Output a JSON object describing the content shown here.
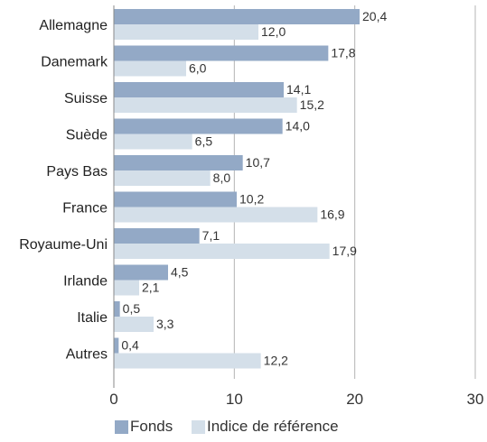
{
  "chart_data": {
    "type": "bar",
    "orientation": "horizontal",
    "categories": [
      "Allemagne",
      "Danemark",
      "Suisse",
      "Suède",
      "Pays Bas",
      "France",
      "Royaume-Uni",
      "Irlande",
      "Italie",
      "Autres"
    ],
    "series": [
      {
        "name": "Fonds",
        "values": [
          20.4,
          17.8,
          14.1,
          14.0,
          10.7,
          10.2,
          7.1,
          4.5,
          0.5,
          0.4
        ],
        "labels": [
          "20,4",
          "17,8",
          "14,1",
          "14,0",
          "10,7",
          "10,2",
          "7,1",
          "4,5",
          "0,5",
          "0,4"
        ],
        "color": "#93a9c6"
      },
      {
        "name": "Indice de référence",
        "values": [
          12.0,
          6.0,
          15.2,
          6.5,
          8.0,
          16.9,
          17.9,
          2.1,
          3.3,
          12.2
        ],
        "labels": [
          "12,0",
          "6,0",
          "15,2",
          "6,5",
          "8,0",
          "16,9",
          "17,9",
          "2,1",
          "3,3",
          "12,2"
        ],
        "color": "#d4dfe9"
      }
    ],
    "xlim": [
      0,
      30
    ],
    "xticks": [
      0,
      10,
      20,
      30
    ],
    "xtick_labels": [
      "0",
      "10",
      "20",
      "30"
    ],
    "grid": true,
    "legend_position": "bottom",
    "gridline_color": "#b4b4b4",
    "axis_color": "#8a8a8a"
  }
}
